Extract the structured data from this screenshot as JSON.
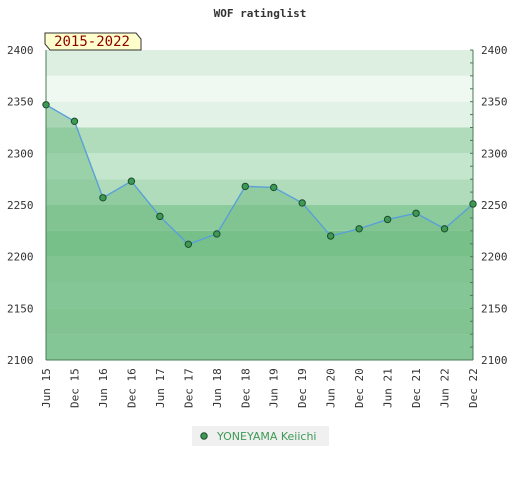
{
  "chart_data": {
    "type": "area",
    "title": "WOF ratinglist",
    "badge": "2015-2022",
    "xlabel": "",
    "ylabel": "",
    "ylim": [
      2100,
      2400
    ],
    "yticks": [
      2100,
      2150,
      2200,
      2250,
      2300,
      2350,
      2400
    ],
    "categories": [
      "Jun 15",
      "Dec 15",
      "Jun 16",
      "Dec 16",
      "Jun 17",
      "Dec 17",
      "Jun 18",
      "Dec 18",
      "Jun 19",
      "Dec 19",
      "Jun 20",
      "Dec 20",
      "Jun 21",
      "Dec 21",
      "Jun 22",
      "Dec 22"
    ],
    "series": [
      {
        "name": "YONEYAMA Keiichi",
        "values": [
          2347,
          2331,
          2257,
          2273,
          2239,
          2212,
          2222,
          2268,
          2267,
          2252,
          2220,
          2227,
          2236,
          2242,
          2227,
          2251
        ]
      }
    ],
    "grid": true,
    "legend_position": "bottom-center",
    "colors": {
      "line": "#5aa0d8",
      "marker_fill": "#3c9a55",
      "marker_stroke": "#1e4d2b",
      "fill_under": "#78c08a",
      "fill_opacity": 0.55,
      "legend_text": "#3c9a55",
      "badge_bg": "#ffffcc",
      "badge_text": "#8b0000",
      "bands": [
        "#96cfa4",
        "#8ccb9c",
        "#96cfa4",
        "#8ccb9c",
        "#78c08a",
        "#8ccb9c",
        "#b0dcbc",
        "#c4e6cc",
        "#b0dcbc",
        "#e2f2e6",
        "#f0f8f2",
        "#dcefe1",
        "#c8e6cf",
        "#b0dcbc"
      ]
    }
  }
}
